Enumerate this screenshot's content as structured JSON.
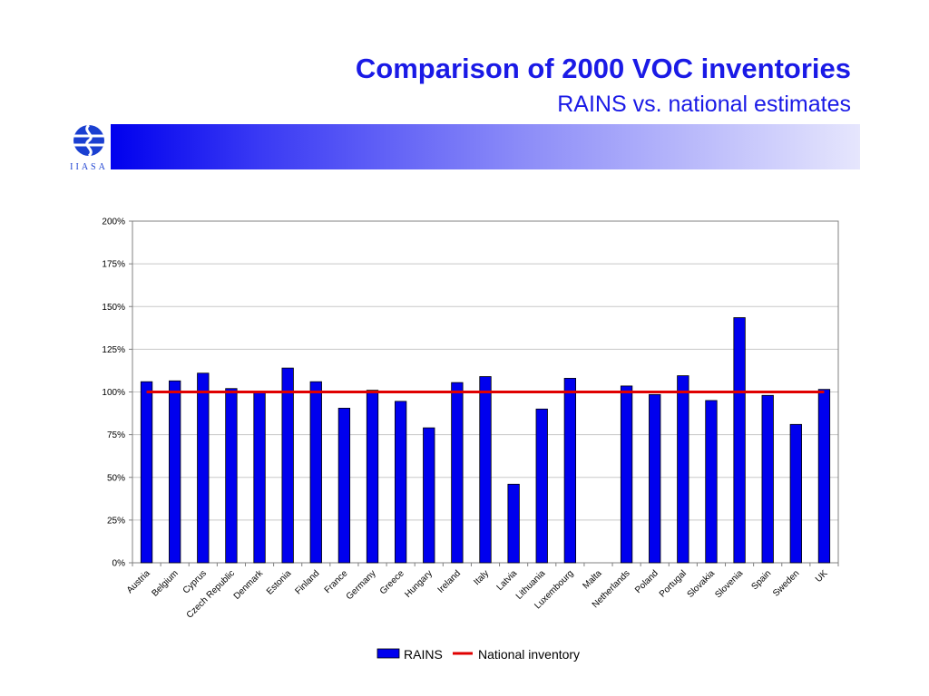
{
  "header": {
    "title": "Comparison of 2000 VOC inventories",
    "subtitle": "RAINS vs. national estimates",
    "logo_text": "IIASA"
  },
  "colors": {
    "accent": "#1a1ae6",
    "bar_fill": "#0000ee",
    "reference_line": "#e00000"
  },
  "chart_data": {
    "type": "bar",
    "categories": [
      "Austria",
      "Belgium",
      "Cyprus",
      "Czech Republic",
      "Denmark",
      "Estonia",
      "Finland",
      "France",
      "Germany",
      "Greece",
      "Hungary",
      "Ireland",
      "Italy",
      "Latvia",
      "Lithuania",
      "Luxembourg",
      "Malta",
      "Netherlands",
      "Poland",
      "Portugal",
      "Slovakia",
      "Slovenia",
      "Spain",
      "Sweden",
      "UK"
    ],
    "series": [
      {
        "name": "RAINS",
        "type": "bar",
        "color": "#0000ee",
        "values": [
          106,
          106.5,
          111,
          102,
          99.5,
          114,
          106,
          90.5,
          101,
          94.5,
          79,
          105.5,
          109,
          46,
          90,
          108,
          null,
          103.5,
          98.5,
          109.5,
          95,
          143.5,
          98,
          81,
          101.5
        ]
      },
      {
        "name": "National inventory",
        "type": "line",
        "color": "#e00000",
        "values": [
          100,
          100,
          100,
          100,
          100,
          100,
          100,
          100,
          100,
          100,
          100,
          100,
          100,
          100,
          100,
          100,
          100,
          100,
          100,
          100,
          100,
          100,
          100,
          100,
          100
        ]
      }
    ],
    "yticks": [
      "0%",
      "25%",
      "50%",
      "75%",
      "100%",
      "125%",
      "150%",
      "175%",
      "200%"
    ],
    "ylim": [
      0,
      200
    ],
    "grid": true,
    "legend_position": "bottom-center",
    "legend": [
      "RAINS",
      "National inventory"
    ]
  }
}
